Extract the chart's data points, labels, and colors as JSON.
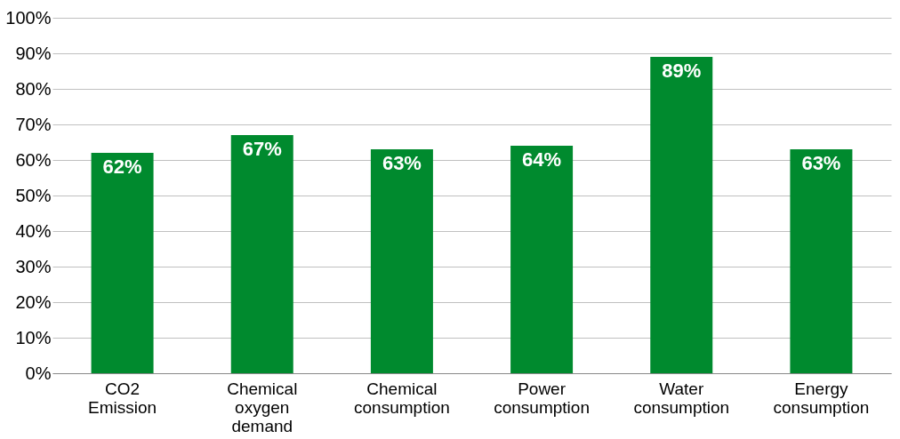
{
  "chart_data": {
    "type": "bar",
    "categories": [
      "CO2 Emission",
      "Chemical oxygen demand",
      "Chemical consumption",
      "Power consumption",
      "Water consumption",
      "Energy consumption"
    ],
    "values": [
      62,
      67,
      63,
      64,
      89,
      63
    ],
    "value_labels": [
      "62%",
      "67%",
      "63%",
      "64%",
      "89%",
      "63%"
    ],
    "color": "#008a2e",
    "ylim": [
      0,
      100
    ],
    "yticks": [
      {
        "value": 0,
        "label": "0%"
      },
      {
        "value": 10,
        "label": "10%"
      },
      {
        "value": 20,
        "label": "20%"
      },
      {
        "value": 30,
        "label": "30%"
      },
      {
        "value": 40,
        "label": "40%"
      },
      {
        "value": 50,
        "label": "50%"
      },
      {
        "value": 60,
        "label": "60%"
      },
      {
        "value": 70,
        "label": "70%"
      },
      {
        "value": 80,
        "label": "80%"
      },
      {
        "value": 90,
        "label": "90%"
      },
      {
        "value": 100,
        "label": "100%"
      }
    ],
    "grid": "y"
  }
}
